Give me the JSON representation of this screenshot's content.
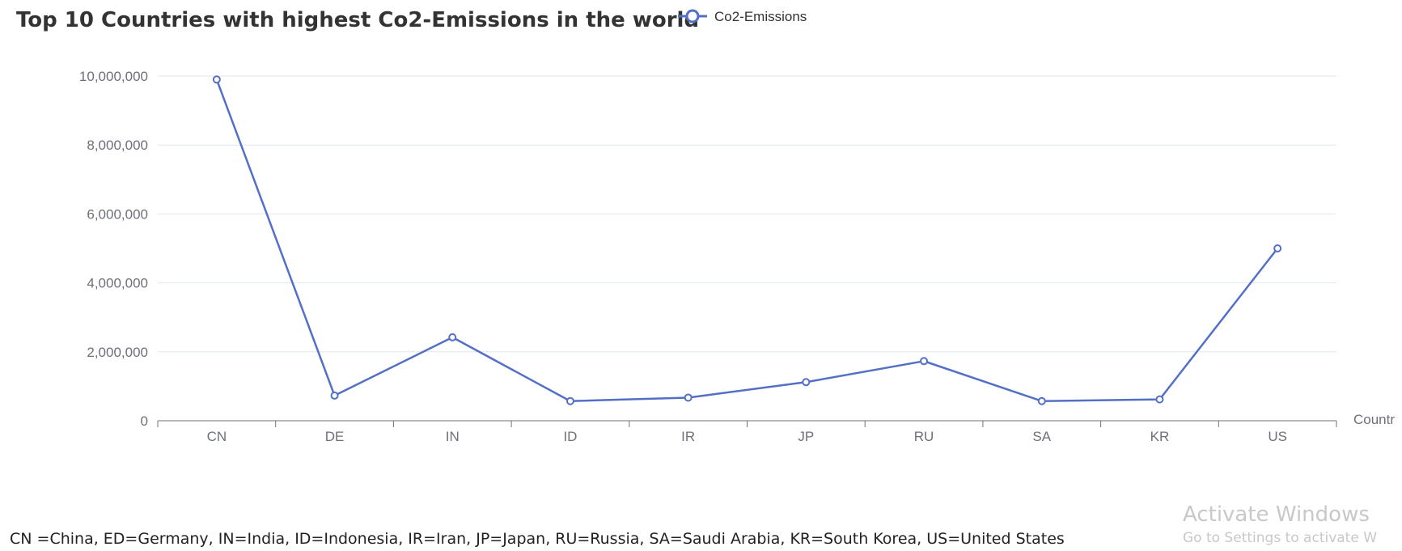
{
  "chart_data": {
    "type": "line",
    "title": "Top 10 Countries with highest Co2-Emissions in the world",
    "xlabel": "Countr",
    "ylabel": "",
    "categories": [
      "CN",
      "DE",
      "IN",
      "ID",
      "IR",
      "JP",
      "RU",
      "SA",
      "KR",
      "US"
    ],
    "series": [
      {
        "name": "Co2-Emissions",
        "values": [
          9900000,
          730000,
          2420000,
          570000,
          670000,
          1120000,
          1730000,
          570000,
          620000,
          5000000
        ],
        "color": "#5470c6"
      }
    ],
    "yticks": [
      "0",
      "2,000,000",
      "4,000,000",
      "6,000,000",
      "8,000,000",
      "10,000,000"
    ],
    "ylim": [
      0,
      10000000
    ],
    "grid": true,
    "legend_position": "top"
  },
  "footnote": "CN =China, ED=Germany, IN=India, ID=Indonesia, IR=Iran, JP=Japan, RU=Russia, SA=Saudi Arabia, KR=South Korea, US=United States",
  "watermark": {
    "title": "Activate Windows",
    "subtitle": "Go to Settings to activate W"
  }
}
